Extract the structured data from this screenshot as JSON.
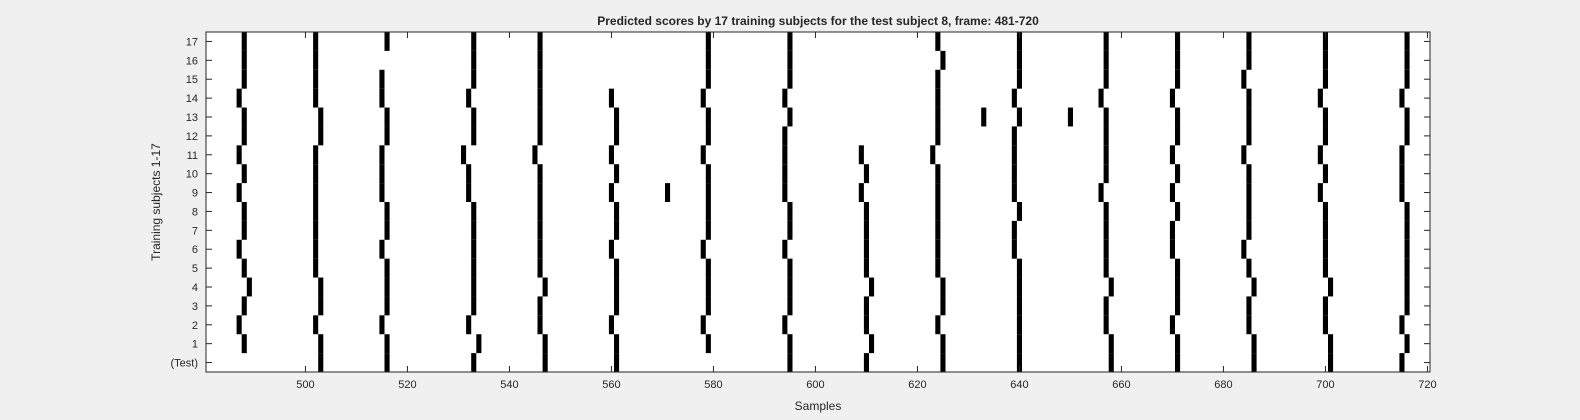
{
  "chart_data": {
    "type": "heatmap",
    "title": "Predicted scores by 17 training subjects for the test subject 8, frame: 481-720",
    "xlabel": "Samples",
    "ylabel": "Training subjects 1-17",
    "xlim": [
      481,
      720
    ],
    "xticks": [
      500,
      520,
      540,
      560,
      580,
      600,
      620,
      640,
      660,
      680,
      700,
      720
    ],
    "row_labels": [
      "17",
      "16",
      "15",
      "14",
      "13",
      "12",
      "11",
      "10",
      "9",
      "8",
      "7",
      "6",
      "5",
      "4",
      "3",
      "2",
      "1",
      "(Test)"
    ],
    "value_colors": {
      "0": "#ffffff",
      "1": "#000000"
    },
    "grid": false,
    "rows": [
      {
        "label": "17",
        "ones": [
          488,
          502,
          516,
          533,
          546,
          579,
          595,
          624,
          640,
          657,
          671,
          685,
          700,
          716
        ]
      },
      {
        "label": "16",
        "ones": [
          488,
          502,
          533,
          546,
          579,
          595,
          625,
          640,
          657,
          671,
          685,
          700,
          716
        ]
      },
      {
        "label": "15",
        "ones": [
          488,
          502,
          515,
          533,
          546,
          579,
          595,
          624,
          640,
          657,
          671,
          684,
          700,
          716
        ]
      },
      {
        "label": "14",
        "ones": [
          487,
          502,
          515,
          532,
          546,
          560,
          578,
          594,
          624,
          639,
          656,
          670,
          685,
          699,
          715
        ]
      },
      {
        "label": "13",
        "ones": [
          488,
          503,
          516,
          533,
          546,
          561,
          579,
          595,
          624,
          633,
          640,
          650,
          657,
          671,
          685,
          700,
          716
        ]
      },
      {
        "label": "12",
        "ones": [
          488,
          503,
          516,
          533,
          546,
          561,
          579,
          594,
          624,
          639,
          657,
          671,
          685,
          700,
          716
        ]
      },
      {
        "label": "11",
        "ones": [
          487,
          502,
          515,
          531,
          545,
          560,
          578,
          594,
          609,
          623,
          639,
          657,
          670,
          684,
          699,
          715
        ]
      },
      {
        "label": "10",
        "ones": [
          488,
          502,
          515,
          532,
          546,
          561,
          579,
          594,
          610,
          624,
          639,
          657,
          671,
          685,
          700,
          715
        ]
      },
      {
        "label": "9",
        "ones": [
          487,
          502,
          515,
          532,
          546,
          560,
          571,
          579,
          594,
          609,
          624,
          639,
          656,
          670,
          685,
          699,
          715
        ]
      },
      {
        "label": "8",
        "ones": [
          488,
          502,
          516,
          533,
          546,
          561,
          579,
          595,
          610,
          624,
          640,
          657,
          671,
          685,
          700,
          716
        ]
      },
      {
        "label": "7",
        "ones": [
          488,
          502,
          516,
          533,
          546,
          561,
          579,
          595,
          610,
          624,
          639,
          657,
          670,
          685,
          700,
          716
        ]
      },
      {
        "label": "6",
        "ones": [
          487,
          502,
          515,
          533,
          546,
          560,
          578,
          594,
          610,
          624,
          639,
          657,
          670,
          684,
          700,
          716
        ]
      },
      {
        "label": "5",
        "ones": [
          488,
          502,
          516,
          533,
          546,
          561,
          579,
          595,
          610,
          624,
          640,
          657,
          671,
          685,
          700,
          716
        ]
      },
      {
        "label": "4",
        "ones": [
          489,
          503,
          516,
          533,
          547,
          561,
          579,
          595,
          611,
          625,
          640,
          658,
          671,
          686,
          701,
          716
        ]
      },
      {
        "label": "3",
        "ones": [
          488,
          503,
          516,
          533,
          546,
          561,
          579,
          595,
          610,
          625,
          640,
          657,
          671,
          685,
          700,
          716
        ]
      },
      {
        "label": "2",
        "ones": [
          487,
          502,
          515,
          532,
          546,
          560,
          578,
          594,
          610,
          624,
          640,
          657,
          670,
          685,
          700,
          715
        ]
      },
      {
        "label": "1",
        "ones": [
          488,
          503,
          516,
          534,
          547,
          561,
          579,
          595,
          611,
          625,
          640,
          658,
          671,
          686,
          701,
          716
        ]
      },
      {
        "label": "(Test)",
        "ones": [
          503,
          516,
          533,
          547,
          561,
          595,
          610,
          625,
          640,
          658,
          671,
          686,
          701,
          715
        ]
      }
    ]
  }
}
